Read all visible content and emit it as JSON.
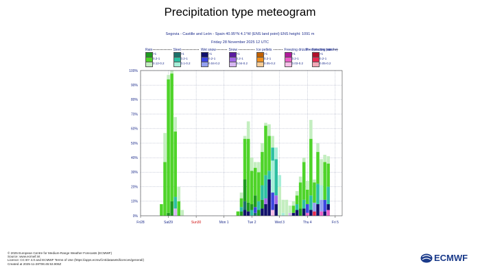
{
  "chart_data": {
    "type": "bar",
    "title": "Precipitation type meteogram",
    "subtitle_1": "Segovia - Castille and León - Spain 40.95°N 4.1°W (ENS land point) ENS height: 1091 m",
    "subtitle_2": "Friday 28 November 2025 12 UTC",
    "ylabel": "",
    "xlabel": "",
    "ylim": [
      0,
      100
    ],
    "y_ticks": [
      "0%",
      "10%",
      "20%",
      "30%",
      "40%",
      "50%",
      "60%",
      "70%",
      "80%",
      "90%",
      "100%"
    ],
    "grid": true,
    "x_range_hours": [
      0,
      174
    ],
    "x_ticks": [
      {
        "label": "Fri28",
        "hour": 0,
        "highlight": false
      },
      {
        "label": "Sat29",
        "hour": 24,
        "highlight": false
      },
      {
        "label": "Sun30",
        "hour": 48,
        "highlight": true
      },
      {
        "label": "Mon 1",
        "hour": 72,
        "highlight": false
      },
      {
        "label": "Tue 2",
        "hour": 96,
        "highlight": false
      },
      {
        "label": "Wed 3",
        "hour": 120,
        "highlight": false
      },
      {
        "label": "Thu 4",
        "hour": 144,
        "highlight": false
      },
      {
        "label": "Fri 5",
        "hour": 168,
        "highlight": false
      }
    ],
    "legend_title": "Precipitation (mm/hr)",
    "legend_placement": "top",
    "legend": [
      {
        "type": "Rain",
        "classes": [
          {
            "label": ">1",
            "color": "#1f9a1f"
          },
          {
            "label": "0.2-1",
            "color": "#4fd42a"
          },
          {
            "label": "0.12-0.2",
            "color": "#c4eec0"
          }
        ]
      },
      {
        "type": "Sleet",
        "classes": [
          {
            "label": ">1",
            "color": "#1c6f6a"
          },
          {
            "label": "0.2-1",
            "color": "#2dbfa2"
          },
          {
            "label": "0.1-0.2",
            "color": "#a6eed8"
          }
        ]
      },
      {
        "type": "Wet snow",
        "classes": [
          {
            "label": ">1",
            "color": "#10106a"
          },
          {
            "label": "0.2-1",
            "color": "#3c46e0"
          },
          {
            "label": "0.04-0.2",
            "color": "#93a0f0"
          }
        ]
      },
      {
        "type": "Snow",
        "classes": [
          {
            "label": ">1",
            "color": "#5a1aa0"
          },
          {
            "label": "0.2-1",
            "color": "#a268e6"
          },
          {
            "label": "0.04-0.2",
            "color": "#d7b6f2"
          }
        ]
      },
      {
        "type": "Ice pellets",
        "classes": [
          {
            "label": ">1",
            "color": "#c06000"
          },
          {
            "label": "0.2-1",
            "color": "#f09020"
          },
          {
            "label": "0.05-0.2",
            "color": "#f6cc98"
          }
        ]
      },
      {
        "type": "Freezing drizzle",
        "classes": [
          {
            "label": ">1",
            "color": "#b01a9a"
          },
          {
            "label": "0.2-1",
            "color": "#ea60c8"
          },
          {
            "label": "0.03-0.2",
            "color": "#f6bde6"
          }
        ]
      },
      {
        "type": "Freezing rain",
        "classes": [
          {
            "label": ">1",
            "color": "#b0102a"
          },
          {
            "label": "0.2-1",
            "color": "#e62a50"
          },
          {
            "label": "0.05-0.2",
            "color": "#f2a8b6"
          }
        ]
      }
    ],
    "series": [
      {
        "hour": 18,
        "segments": [
          [
            "rain_mid",
            8
          ]
        ]
      },
      {
        "hour": 21,
        "segments": [
          [
            "rain_mid",
            37
          ],
          [
            "rain_light",
            20
          ]
        ]
      },
      {
        "hour": 24,
        "segments": [
          [
            "rain_heavy",
            2
          ],
          [
            "rain_mid",
            92
          ],
          [
            "rain_light",
            3
          ]
        ]
      },
      {
        "hour": 27,
        "segments": [
          [
            "rain_heavy",
            10
          ],
          [
            "rain_mid",
            88
          ],
          [
            "rain_light",
            2
          ]
        ]
      },
      {
        "hour": 30,
        "segments": [
          [
            "snow_light",
            5
          ],
          [
            "sleet_mid",
            8
          ],
          [
            "rain_mid",
            45
          ],
          [
            "rain_light",
            10
          ]
        ]
      },
      {
        "hour": 33,
        "segments": [
          [
            "rain_mid",
            10
          ],
          [
            "rain_light",
            10
          ]
        ]
      },
      {
        "hour": 36,
        "segments": [
          [
            "rain_light",
            4
          ]
        ]
      },
      {
        "hour": 84,
        "segments": [
          [
            "rain_mid",
            3
          ]
        ]
      },
      {
        "hour": 87,
        "segments": [
          [
            "rain_heavy",
            3
          ],
          [
            "sleet_mid",
            3
          ],
          [
            "rain_mid",
            6
          ],
          [
            "rain_light",
            4
          ]
        ]
      },
      {
        "hour": 90,
        "segments": [
          [
            "wet_snow_heavy",
            4
          ],
          [
            "sleet_heavy",
            6
          ],
          [
            "rain_heavy",
            15
          ],
          [
            "rain_mid",
            28
          ],
          [
            "rain_light",
            2
          ]
        ]
      },
      {
        "hour": 93,
        "segments": [
          [
            "wet_snow_heavy",
            3
          ],
          [
            "rain_heavy",
            6
          ],
          [
            "rain_mid",
            44
          ],
          [
            "rain_light",
            12
          ]
        ]
      },
      {
        "hour": 96,
        "segments": [
          [
            "sleet_mid",
            4
          ],
          [
            "rain_heavy",
            4
          ],
          [
            "rain_mid",
            23
          ],
          [
            "rain_light",
            9
          ]
        ]
      },
      {
        "hour": 99,
        "segments": [
          [
            "sleet_heavy",
            2
          ],
          [
            "wet_snow_mid",
            4
          ],
          [
            "rain_heavy",
            8
          ],
          [
            "rain_mid",
            19
          ],
          [
            "rain_light",
            4
          ]
        ]
      },
      {
        "hour": 102,
        "segments": [
          [
            "rain_heavy",
            4
          ],
          [
            "sleet_mid",
            6
          ],
          [
            "rain_mid",
            20
          ],
          [
            "rain_light",
            7
          ]
        ]
      },
      {
        "hour": 105,
        "segments": [
          [
            "wet_snow_heavy",
            5
          ],
          [
            "rain_heavy",
            6
          ],
          [
            "sleet_mid",
            10
          ],
          [
            "rain_mid",
            23
          ],
          [
            "rain_light",
            6
          ]
        ]
      },
      {
        "hour": 108,
        "segments": [
          [
            "wet_snow_heavy",
            8
          ],
          [
            "snow_mid",
            4
          ],
          [
            "sleet_mid",
            16
          ],
          [
            "rain_mid",
            34
          ],
          [
            "rain_light",
            2
          ]
        ]
      },
      {
        "hour": 111,
        "segments": [
          [
            "wet_snow_heavy",
            25
          ],
          [
            "sleet_mid",
            6
          ],
          [
            "rain_mid",
            24
          ],
          [
            "rain_light",
            8
          ]
        ]
      },
      {
        "hour": 114,
        "segments": [
          [
            "freezing_drizzle_light",
            4
          ],
          [
            "wet_snow_mid",
            12
          ],
          [
            "sleet_light",
            22
          ],
          [
            "sleet_mid",
            9
          ],
          [
            "rain_light",
            8
          ]
        ]
      },
      {
        "hour": 117,
        "segments": [
          [
            "wet_snow_heavy",
            8
          ],
          [
            "snow_mid",
            6
          ],
          [
            "sleet_mid",
            25
          ],
          [
            "sleet_light",
            8
          ]
        ]
      },
      {
        "hour": 120,
        "segments": [
          [
            "rain_light",
            20
          ],
          [
            "sleet_light",
            8
          ]
        ]
      },
      {
        "hour": 123,
        "segments": [
          [
            "sleet_light",
            2
          ],
          [
            "rain_light",
            9
          ]
        ]
      },
      {
        "hour": 126,
        "segments": [
          [
            "rain_light",
            11
          ]
        ]
      },
      {
        "hour": 129,
        "segments": [
          [
            "snow_light",
            2
          ],
          [
            "rain_light",
            5
          ]
        ]
      },
      {
        "hour": 132,
        "segments": [
          [
            "wet_snow_heavy",
            2
          ],
          [
            "rain_mid",
            5
          ],
          [
            "rain_light",
            3
          ]
        ]
      },
      {
        "hour": 135,
        "segments": [
          [
            "wet_snow_heavy",
            4
          ],
          [
            "sleet_mid",
            4
          ],
          [
            "rain_mid",
            6
          ],
          [
            "rain_light",
            3
          ]
        ]
      },
      {
        "hour": 138,
        "segments": [
          [
            "rain_heavy",
            5
          ],
          [
            "rain_mid",
            18
          ],
          [
            "rain_light",
            4
          ]
        ]
      },
      {
        "hour": 141,
        "segments": [
          [
            "wet_snow_heavy",
            5
          ],
          [
            "sleet_mid",
            6
          ],
          [
            "rain_mid",
            26
          ],
          [
            "rain_light",
            3
          ]
        ]
      },
      {
        "hour": 144,
        "segments": [
          [
            "freezing_drizzle_mid",
            2
          ],
          [
            "wet_snow_mid",
            6
          ],
          [
            "rain_mid",
            10
          ],
          [
            "rain_light",
            6
          ]
        ]
      },
      {
        "hour": 147,
        "segments": [
          [
            "wet_snow_heavy",
            4
          ],
          [
            "sleet_mid",
            10
          ],
          [
            "rain_mid",
            39
          ],
          [
            "rain_light",
            13
          ]
        ]
      },
      {
        "hour": 150,
        "segments": [
          [
            "freezing_rain_mid",
            3
          ],
          [
            "wet_snow_light",
            6
          ],
          [
            "rain_mid",
            14
          ],
          [
            "rain_light",
            2
          ]
        ]
      },
      {
        "hour": 153,
        "segments": [
          [
            "wet_snow_heavy",
            8
          ],
          [
            "sleet_mid",
            14
          ],
          [
            "rain_mid",
            22
          ],
          [
            "rain_light",
            6
          ]
        ]
      },
      {
        "hour": 156,
        "segments": [
          [
            "freezing_drizzle_mid",
            3
          ],
          [
            "wet_snow_light",
            8
          ],
          [
            "sleet_light",
            10
          ],
          [
            "rain_light",
            18
          ]
        ]
      },
      {
        "hour": 159,
        "segments": [
          [
            "wet_snow_heavy",
            3
          ],
          [
            "wet_snow_mid",
            8
          ],
          [
            "rain_mid",
            26
          ],
          [
            "rain_light",
            5
          ]
        ]
      },
      {
        "hour": 162,
        "segments": [
          [
            "freezing_drizzle_mid",
            4
          ],
          [
            "wet_snow_heavy",
            4
          ],
          [
            "sleet_mid",
            12
          ],
          [
            "rain_mid",
            16
          ],
          [
            "rain_light",
            5
          ]
        ]
      }
    ]
  },
  "footer": {
    "line1": "© 2025 European Centre for Medium-Range Weather Forecasts (ECMWF)",
    "line2": "Source: www.ecmwf.int",
    "line3": "Licence: CC BY 4.0 and ECMWF Terms of Use (https://apps.ecmwf.int/datasets/licences/general/)",
    "line4": "Created at 2025-11-28T06:45:53.906Z"
  },
  "logo": {
    "text": "ECMWF",
    "color": "#1a3a8a"
  }
}
